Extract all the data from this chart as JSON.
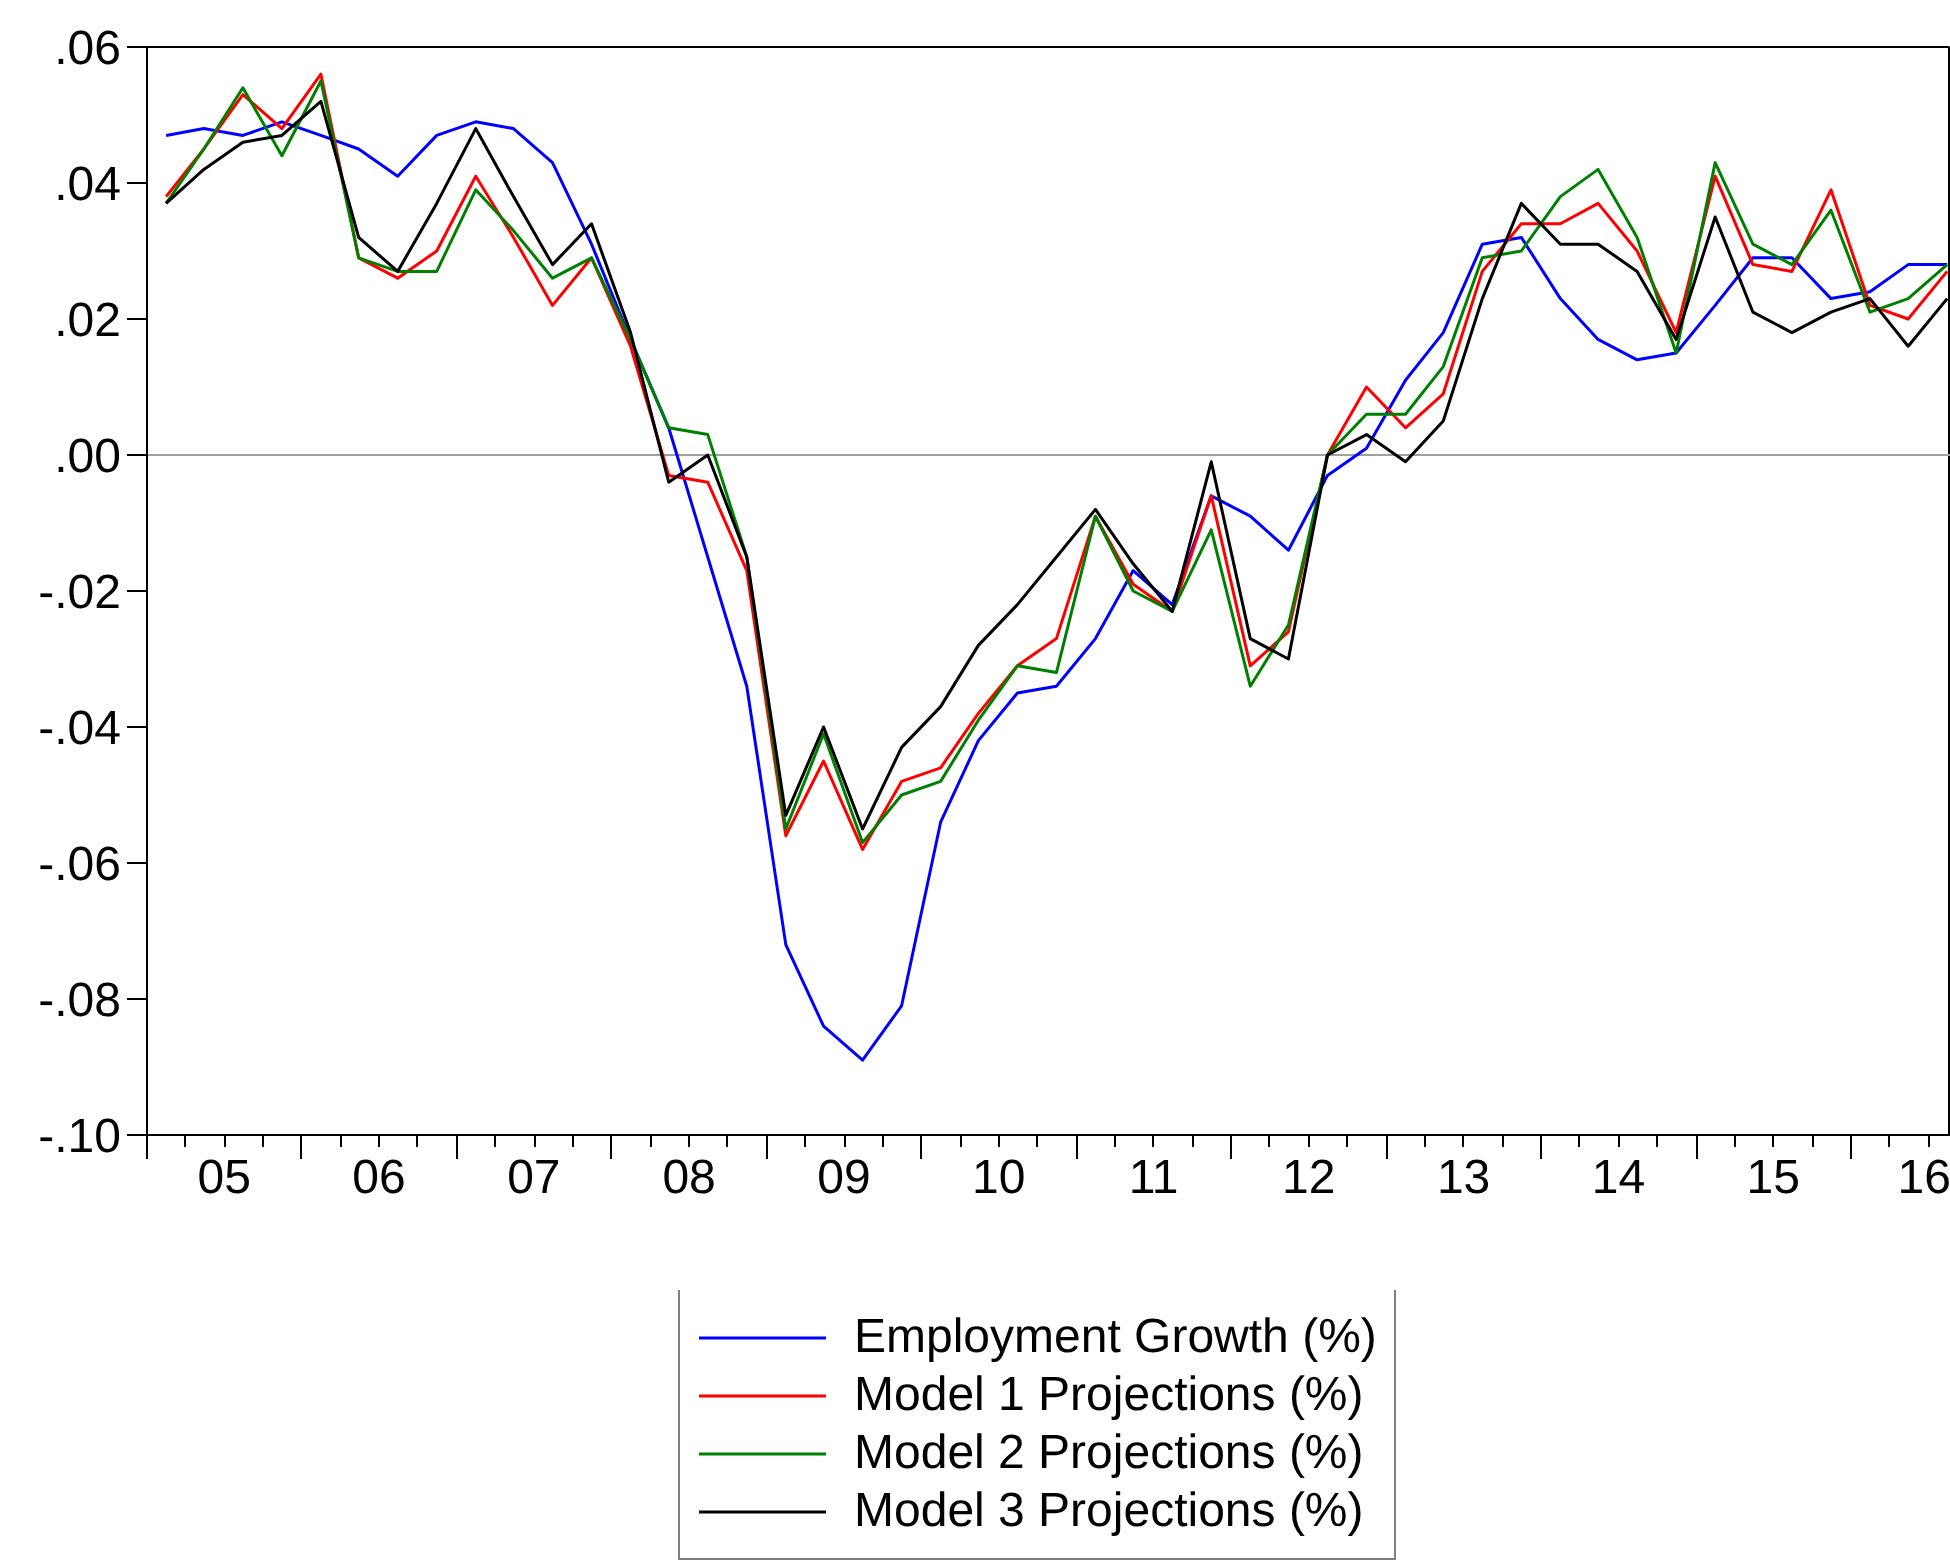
{
  "chart_data": {
    "type": "line",
    "x": [
      "2005-02-15",
      "2005-05-15",
      "2005-08-15",
      "2005-11-15",
      "2006-02-15",
      "2006-05-15",
      "2006-08-15",
      "2006-11-15",
      "2007-02-15",
      "2007-05-15",
      "2007-08-15",
      "2007-11-15",
      "2008-02-15",
      "2008-05-15",
      "2008-08-15",
      "2008-11-15",
      "2009-02-15",
      "2009-05-15",
      "2009-08-15",
      "2009-11-15",
      "2010-02-15",
      "2010-05-15",
      "2010-08-15",
      "2010-11-15",
      "2011-02-15",
      "2011-05-15",
      "2011-08-15",
      "2011-11-15",
      "2012-02-15",
      "2012-05-15",
      "2012-08-15",
      "2012-11-15",
      "2013-02-15",
      "2013-05-15",
      "2013-08-15",
      "2013-11-15",
      "2014-02-15",
      "2014-05-15",
      "2014-08-15",
      "2014-11-15",
      "2015-02-15",
      "2015-05-15",
      "2015-08-15",
      "2015-11-15",
      "2016-02-15",
      "2016-05-15",
      "2016-08-15"
    ],
    "series": [
      {
        "name": "Employment Growth (%)",
        "color": "#0000ff",
        "values": [
          0.047,
          0.048,
          0.047,
          0.049,
          0.047,
          0.045,
          0.041,
          0.047,
          0.049,
          0.048,
          0.043,
          0.031,
          0.017,
          0.004,
          -0.015,
          -0.034,
          -0.072,
          -0.084,
          -0.089,
          -0.081,
          -0.054,
          -0.042,
          -0.035,
          -0.034,
          -0.027,
          -0.017,
          -0.022,
          -0.006,
          -0.009,
          -0.014,
          -0.003,
          0.001,
          0.011,
          0.018,
          0.031,
          0.032,
          0.023,
          0.017,
          0.014,
          0.015,
          0.022,
          0.029,
          0.029,
          0.023,
          0.024,
          0.028,
          0.028
        ]
      },
      {
        "name": "Model 1 Projections (%)",
        "color": "#ff0000",
        "values": [
          0.038,
          0.045,
          0.053,
          0.048,
          0.056,
          0.029,
          0.026,
          0.03,
          0.041,
          0.032,
          0.022,
          0.029,
          0.016,
          -0.003,
          -0.004,
          -0.017,
          -0.056,
          -0.045,
          -0.058,
          -0.048,
          -0.046,
          -0.038,
          -0.031,
          -0.027,
          -0.009,
          -0.019,
          -0.023,
          -0.006,
          -0.031,
          -0.026,
          0.0,
          0.01,
          0.004,
          0.009,
          0.027,
          0.034,
          0.034,
          0.037,
          0.03,
          0.018,
          0.041,
          0.028,
          0.027,
          0.039,
          0.022,
          0.02,
          0.027
        ]
      },
      {
        "name": "Model 2 Projections (%)",
        "color": "#008000",
        "values": [
          0.037,
          0.045,
          0.054,
          0.044,
          0.055,
          0.029,
          0.027,
          0.027,
          0.039,
          0.033,
          0.026,
          0.029,
          0.017,
          0.004,
          0.003,
          -0.015,
          -0.055,
          -0.041,
          -0.057,
          -0.05,
          -0.048,
          -0.039,
          -0.031,
          -0.032,
          -0.009,
          -0.02,
          -0.023,
          -0.011,
          -0.034,
          -0.025,
          0.0,
          0.006,
          0.006,
          0.013,
          0.029,
          0.03,
          0.038,
          0.042,
          0.032,
          0.015,
          0.043,
          0.031,
          0.028,
          0.036,
          0.021,
          0.023,
          0.028
        ]
      },
      {
        "name": "Model 3 Projections (%)",
        "color": "#000000",
        "values": [
          0.037,
          0.042,
          0.046,
          0.047,
          0.052,
          0.032,
          0.027,
          0.037,
          0.048,
          0.038,
          0.028,
          0.034,
          0.018,
          -0.004,
          0.0,
          -0.015,
          -0.053,
          -0.04,
          -0.055,
          -0.043,
          -0.037,
          -0.028,
          -0.022,
          -0.015,
          -0.008,
          -0.016,
          -0.023,
          -0.001,
          -0.027,
          -0.03,
          0.0,
          0.003,
          -0.001,
          0.005,
          0.023,
          0.037,
          0.031,
          0.031,
          0.027,
          0.017,
          0.035,
          0.021,
          0.018,
          0.021,
          0.023,
          0.016,
          0.023
        ]
      }
    ],
    "xlim": [
      "2005-01-01",
      "2016-08-24"
    ],
    "xticks": [
      {
        "value": "2005",
        "label": null
      },
      {
        "value": "2006",
        "label": null
      },
      {
        "value": "2007",
        "label": null
      },
      {
        "value": "2008",
        "label": null
      },
      {
        "value": "2009",
        "label": null
      },
      {
        "value": "2010",
        "label": null
      },
      {
        "value": "2011",
        "label": null
      },
      {
        "value": "2012",
        "label": null
      },
      {
        "value": "2013",
        "label": null
      },
      {
        "value": "2014",
        "label": null
      },
      {
        "value": "2015",
        "label": null
      },
      {
        "value": "2016",
        "label": null
      },
      {
        "value": "2005-07-02",
        "label": "05"
      },
      {
        "value": "2006-07-02",
        "label": "06"
      },
      {
        "value": "2007-07-02",
        "label": "07"
      },
      {
        "value": "2008-07-02",
        "label": "08"
      },
      {
        "value": "2009-07-02",
        "label": "09"
      },
      {
        "value": "2010-07-02",
        "label": "10"
      },
      {
        "value": "2011-07-02",
        "label": "11"
      },
      {
        "value": "2012-07-02",
        "label": "12"
      },
      {
        "value": "2013-07-02",
        "label": "13"
      },
      {
        "value": "2014-07-02",
        "label": "14"
      },
      {
        "value": "2015-07-02",
        "label": "15"
      },
      {
        "value": "2016-07-02",
        "label": "16"
      }
    ],
    "ylim": [
      -0.1,
      0.06
    ],
    "yticks": [
      {
        "value": 0.06,
        "label": ".06"
      },
      {
        "value": 0.04,
        "label": ".04"
      },
      {
        "value": 0.02,
        "label": ".02"
      },
      {
        "value": 0,
        "label": ".00"
      },
      {
        "value": -0.02,
        "label": "-.02"
      },
      {
        "value": -0.04,
        "label": "-.04"
      },
      {
        "value": -0.06,
        "label": "-.06"
      },
      {
        "value": -0.08,
        "label": "-.08"
      },
      {
        "value": -0.1,
        "label": "-.10"
      }
    ],
    "ref_lines": [
      {
        "axis": "y",
        "value": 0,
        "color": "#a0a0a0"
      }
    ],
    "legend": "bottom",
    "line_style": "solid"
  }
}
